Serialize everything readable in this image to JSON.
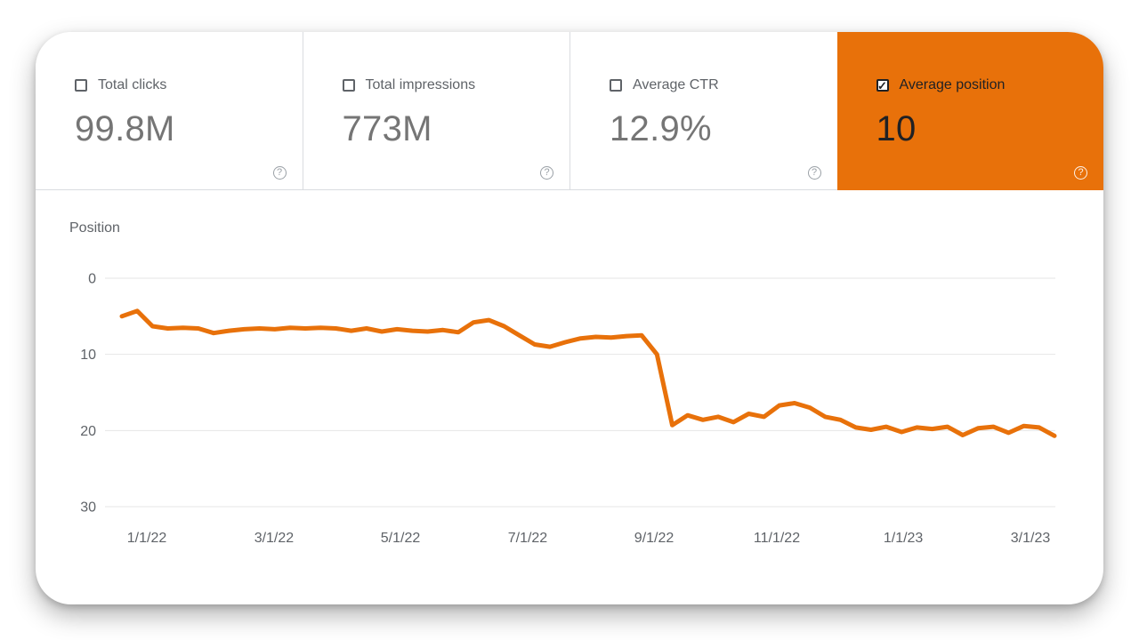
{
  "icons": {
    "help": "?",
    "check": "✓"
  },
  "colors": {
    "accent_orange": "#e8710a",
    "selected_text": "#202124",
    "label_gray": "#5f6368",
    "value_gray": "#757575",
    "divider": "#dadce0",
    "gridline": "#e6e6e6"
  },
  "metrics": {
    "cards": [
      {
        "label": "Total clicks",
        "value": "99.8M",
        "checked": false,
        "selected": false
      },
      {
        "label": "Total impressions",
        "value": "773M",
        "checked": false,
        "selected": false
      },
      {
        "label": "Average CTR",
        "value": "12.9%",
        "checked": false,
        "selected": false
      },
      {
        "label": "Average position",
        "value": "10",
        "checked": true,
        "selected": true
      }
    ]
  },
  "chart_data": {
    "type": "line",
    "title": "",
    "ylabel": "Position",
    "xlabel": "",
    "y_ticks": [
      0,
      10,
      20,
      30
    ],
    "y_range": [
      0,
      30
    ],
    "y_axis_inverted": true,
    "x_unit": "week_index",
    "x_range": [
      0,
      61
    ],
    "x_tick_labels": [
      "1/1/22",
      "3/1/22",
      "5/1/22",
      "7/1/22",
      "9/1/22",
      "11/1/22",
      "1/1/23",
      "3/1/23"
    ],
    "x_tick_positions": [
      1.63,
      9.95,
      18.22,
      26.54,
      34.81,
      42.84,
      51.11,
      59.43
    ],
    "grid": "horizontal-only",
    "legend": "none",
    "series": [
      {
        "name": "Average position",
        "color": "#e8710a",
        "values": [
          5.0,
          4.3,
          6.3,
          6.6,
          6.5,
          6.6,
          7.2,
          6.9,
          6.7,
          6.6,
          6.7,
          6.5,
          6.6,
          6.5,
          6.6,
          6.9,
          6.6,
          7.0,
          6.7,
          6.9,
          7.0,
          6.8,
          7.1,
          5.8,
          5.5,
          6.3,
          7.5,
          8.7,
          9.0,
          8.4,
          7.9,
          7.7,
          7.8,
          7.6,
          7.5,
          10.0,
          19.3,
          18.0,
          18.6,
          18.2,
          18.9,
          17.8,
          18.2,
          16.7,
          16.4,
          17.0,
          18.2,
          18.6,
          19.6,
          19.9,
          19.5,
          20.2,
          19.6,
          19.8,
          19.5,
          20.6,
          19.7,
          19.5,
          20.3,
          19.4,
          19.6,
          20.7
        ]
      }
    ]
  }
}
